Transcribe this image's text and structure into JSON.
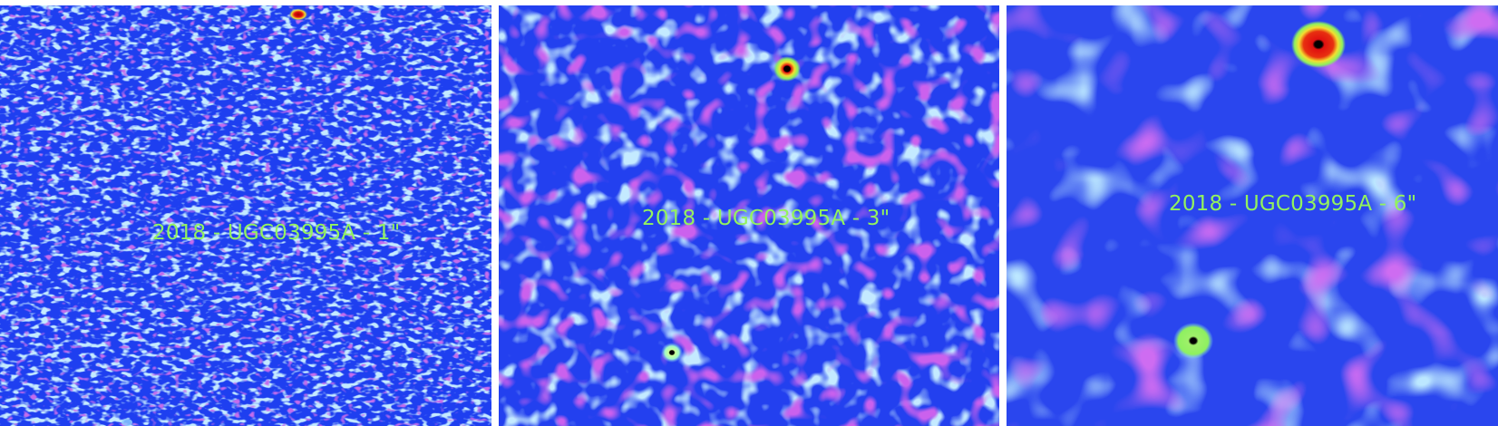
{
  "panels": [
    {
      "label": "2018 - UGC03995A - 1\""
    },
    {
      "label": "2018 - UGC03995A - 3\""
    },
    {
      "label": "2018 - UGC03995A - 6\""
    }
  ],
  "colors": {
    "background_blue": "#1e3ff0",
    "noise_light": "#7fb8ff",
    "noise_magenta": "#9b2ad8",
    "label_green": "#93f25e",
    "source_red": "#e01010",
    "source_yellow": "#f2e030",
    "source_green": "#8ef060",
    "separator": "#ffffff"
  }
}
